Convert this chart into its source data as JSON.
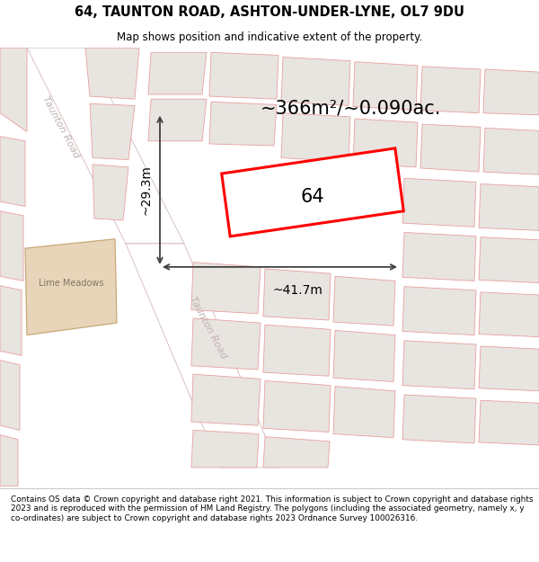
{
  "title": "64, TAUNTON ROAD, ASHTON-UNDER-LYNE, OL7 9DU",
  "subtitle": "Map shows position and indicative extent of the property.",
  "area_text": "~366m²/~0.090ac.",
  "label_64": "64",
  "dim_width": "~41.7m",
  "dim_height": "~29.3m",
  "road_label_upper": "Taunton Road",
  "road_label_lower": "Taunton Road",
  "lime_meadows": "Lime Meadows",
  "footer": "Contains OS data © Crown copyright and database right 2021. This information is subject to Crown copyright and database rights 2023 and is reproduced with the permission of HM Land Registry. The polygons (including the associated geometry, namely x, y co-ordinates) are subject to Crown copyright and database rights 2023 Ordnance Survey 100026316.",
  "map_bg": "#f7f5f3",
  "building_fill": "#e8e4e0",
  "building_edge": "#e8a0a0",
  "lime_fill": "#e8d4b8",
  "lime_edge": "#c8a878",
  "prop_fill": "#ffffff",
  "prop_edge": "#ff0000",
  "dim_color": "#404040",
  "road_text_color": "#c0b0b0",
  "title_color": "#000000",
  "footer_color": "#000000"
}
